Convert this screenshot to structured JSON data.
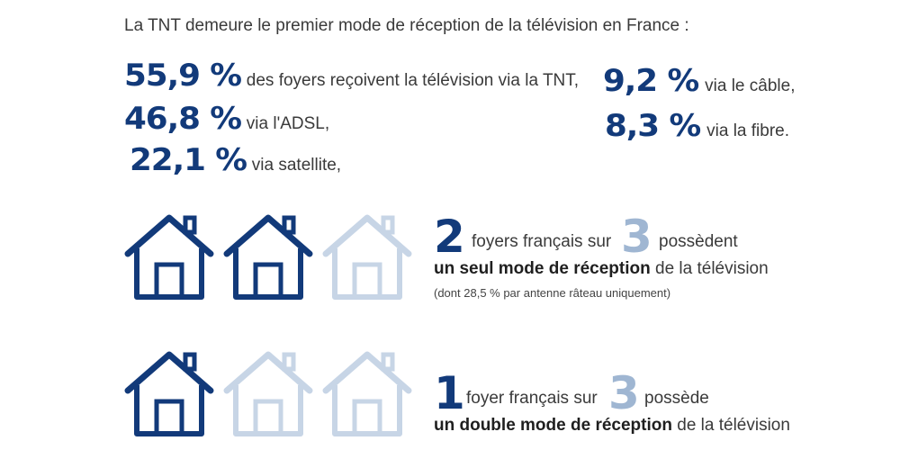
{
  "headline": "La TNT demeure le premier mode de réception de la télévision en France :",
  "stats": [
    {
      "value": "55,9 %",
      "text": "des foyers reçoivent la télévision via la TNT,"
    },
    {
      "value": "46,8 %",
      "text": "via l'ADSL,"
    },
    {
      "value": "22,1 %",
      "text": "via satellite,"
    },
    {
      "value": "9,2 %",
      "text": "via le câble,"
    },
    {
      "value": "8,3 %",
      "text": "via la fibre."
    }
  ],
  "block1": {
    "num_a": "2",
    "text_a": "foyers français sur",
    "num_b": "3",
    "text_b": "possèdent",
    "bold": "un seul mode de réception",
    "rest": " de la télévision",
    "note": "(dont 28,5 % par antenne râteau uniquement)",
    "filled_houses": 2,
    "total_houses": 3
  },
  "block2": {
    "num_a": "1",
    "text_a": "foyer français sur",
    "num_b": "3",
    "text_b": "possède",
    "bold": "un double mode de réception",
    "rest": " de la télévision",
    "filled_houses": 1,
    "total_houses": 3
  },
  "colors": {
    "dark": "#123a7a",
    "light": "#9fb6d2",
    "text": "#3a3a3a"
  }
}
